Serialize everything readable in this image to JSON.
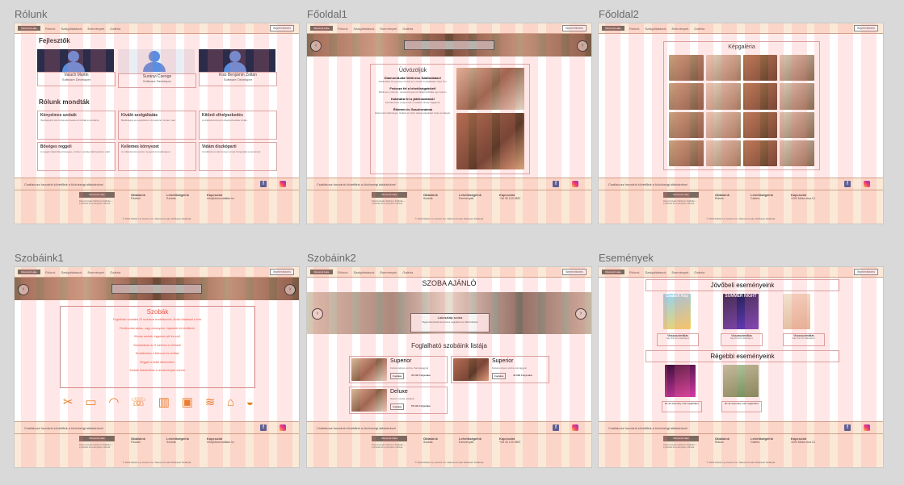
{
  "frames": {
    "rolunk": {
      "label": "Rólunk"
    },
    "foldal1": {
      "label": "Főoldal1"
    },
    "foldal2": {
      "label": "Főoldal2"
    },
    "szobaink1": {
      "label": "Szobáink1"
    },
    "szobaink2": {
      "label": "Szobáink2"
    },
    "esemenyek": {
      "label": "Események"
    }
  },
  "header": {
    "logo": "Diamond Lake",
    "nav": [
      "Rólunk",
      "Szolgáltatások",
      "Események",
      "Galéria"
    ],
    "login": "Bejelentkezés"
  },
  "footer": {
    "slogan": "Csatlakozz hozzánk követőink a közösségi oldalainkon!",
    "logo": "Diamond Lake",
    "text": "Diamond Lake Wellness Szálloda — a pihenés és a kényelem otthona.",
    "col1_title": "Oldalaink",
    "col1_items": [
      "Főoldal",
      "Szobák",
      "Rólunk"
    ],
    "col2_title": "Lehetőségeink",
    "col2_items": [
      "Szobák",
      "Események",
      "Galéria"
    ],
    "col3_title": "Kapcsolat",
    "col3_items": [
      "1000 Minta utca 12.",
      "info@diamondlake.hu",
      "+36 30 123 4567"
    ],
    "copyright": "© 2024 Mixter Ivy Kentsz Inc. Diamond Lake Wellness Szálloda",
    "fb": "f"
  },
  "rolunk": {
    "dev_title": "Fejlesztők",
    "developers": [
      {
        "name": "Valach Martin",
        "role": "Software Developer"
      },
      {
        "name": "Surányi Csenge",
        "role": "Software Developer"
      },
      {
        "name": "Kiss Benjámin Zoltán",
        "role": "Software Developer"
      }
    ],
    "reviews_title": "Rólunk mondták",
    "reviews": [
      {
        "title": "Kényelmes szobák",
        "text": "Vendégeink szerint kényelmesek és tiszták a szobáink."
      },
      {
        "title": "Kiváló szolgáltatás",
        "text": "Barátságos és segítőkész személyzet minden nap."
      },
      {
        "title": "Kitűnő elhelyezkedés",
        "text": "A szálloda központi elhelyezkedése kiváló."
      },
      {
        "title": "Bőséges reggeli",
        "text": "A reggeli választéka bőséges, minden vendég talál kedvére valót."
      },
      {
        "title": "Kellemes környezet",
        "text": "A szálloda környezete nyugodt és barátságos."
      },
      {
        "title": "Vidám diszkóparti",
        "text": "A szálloda rendezvényei remek hangulatot teremtenek."
      }
    ]
  },
  "foldal1": {
    "title": "Üdvözöljük",
    "sub1": "DiamondLake Wellness Szállodában!",
    "body1": "Szállodánk kényelmes szobái és a kiváló szolgáltatás várja Önt.",
    "sub2": "Fedezze fel a lehetőségeinket!",
    "body2": "Wellness, pihenés, rendezvények és kikapcsolódás egy helyen.",
    "sub3": "Kalandra fel a játékosoknak!",
    "body3": "Szórakoztató programok a család minden tagjának.",
    "sub4": "Étterem és Gasztronómia",
    "body4": "Éttermünk különleges ízekkel és helyi alapanyagokkal várja vendégeit."
  },
  "foldal2": {
    "title": "Képgaléria"
  },
  "szobaink1": {
    "title": "Szobák",
    "lines": [
      "Foglalható szobáink 20 szobával rendelkeznek, kiváló kilátással a tóra.",
      "Fürdőszoba kádas, vagy zuhanyzós, hajszárító és törölköző.",
      "Klímás szobák, ingyenes wifi és széf.",
      "Szobáinkban az 5 méteres is elérhető.",
      "Szobáinkban a televízió és minibár.",
      "Reggeli a belső étteremben.",
      "Szobák felszerelése a rendezvények szerint."
    ]
  },
  "szobaink2": {
    "title": "SZOBA AJÁNLÓ",
    "caption_title": "Lakosztály szoba",
    "caption_text": "Tágas lakosztály kényelmes nappalival és hálószobával.",
    "list_title": "Foglalható szobáink listája",
    "rooms": [
      {
        "name": "Superior",
        "desc": "Kétszemélyes szoba, franciaággyal",
        "btn": "Foglalás",
        "price": "35.000 Ft/éjszaka"
      },
      {
        "name": "Superior",
        "desc": "Kétszemélyes szoba, két ággyal",
        "btn": "Foglalás",
        "price": "40.000 Ft/éjszaka"
      },
      {
        "name": "Deluxe",
        "desc": "Deluxe szoba erkéllyel",
        "btn": "Foglalás",
        "price": "55.000 Ft/éjszaka"
      }
    ]
  },
  "esemenyek": {
    "future_title": "Jövőbeli eseményeink",
    "future": [
      {
        "poster": "Családi Nap",
        "btn": "Visszaszámlálás",
        "date": "Nap Óra Perc Másodperc"
      },
      {
        "poster": "SUMMER NIGHT",
        "btn": "Visszaszámlálás",
        "date": "Nap Óra Perc Másodperc"
      },
      {
        "poster": "",
        "btn": "Visszaszámlálás",
        "date": "Nap Óra Perc Másodperc"
      }
    ],
    "past_title": "Régebbi eseményeink",
    "past": [
      {
        "poster": "",
        "caption": "Ez az esemény már megtörtént"
      },
      {
        "poster": "",
        "caption": "Ez az esemény már megtörtént"
      }
    ]
  },
  "colors": {
    "accent": "#e74c3c",
    "header": "#fbe9d8",
    "canvas": "#d9d9d9"
  }
}
